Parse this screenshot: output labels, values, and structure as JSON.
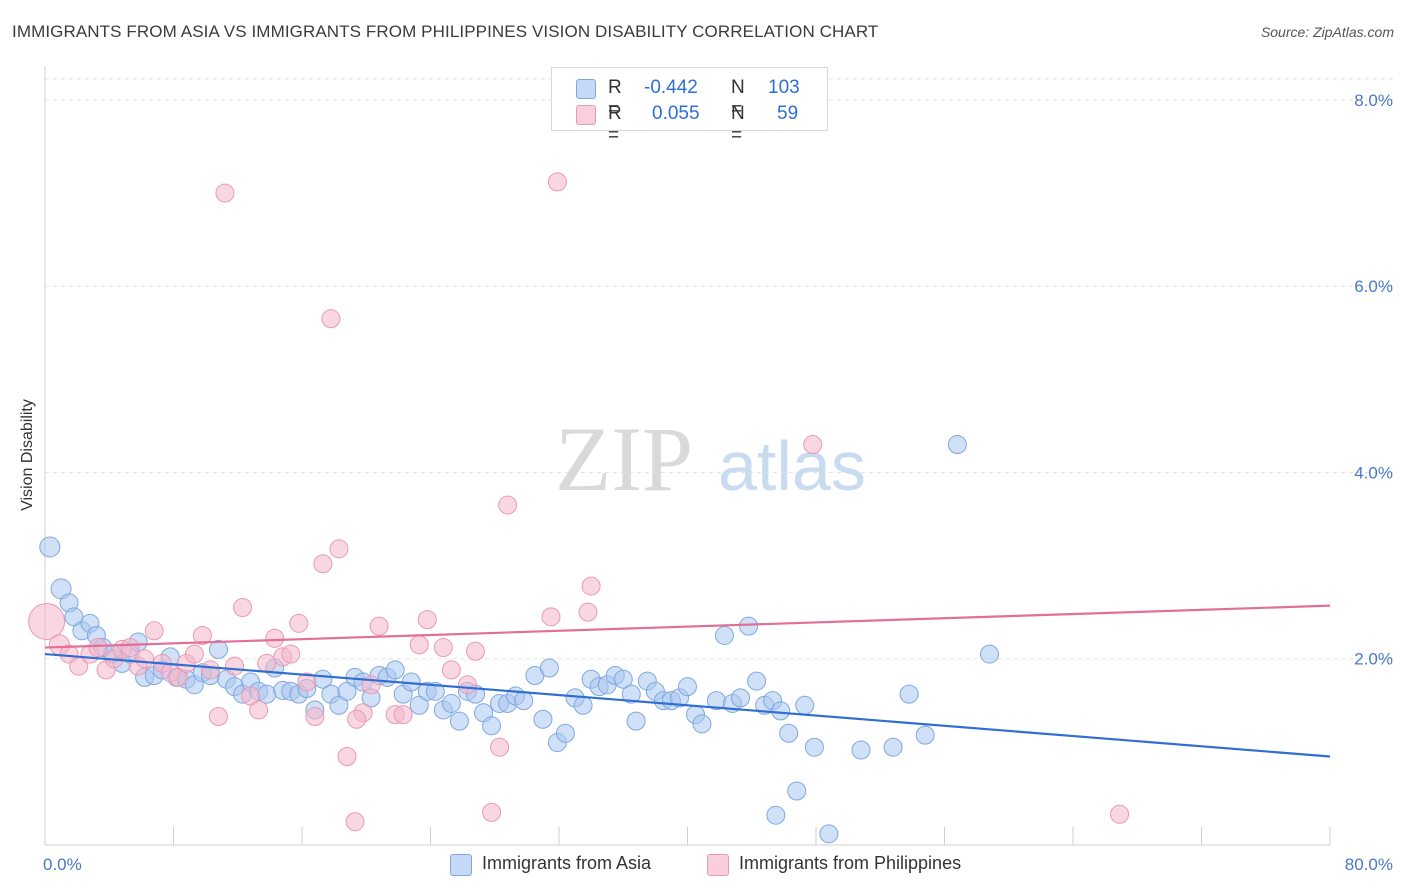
{
  "title": "IMMIGRANTS FROM ASIA VS IMMIGRANTS FROM PHILIPPINES VISION DISABILITY CORRELATION CHART",
  "source": "Source: ZipAtlas.com",
  "watermark": {
    "zip": "ZIP",
    "atlas": "atlas"
  },
  "legend_top": {
    "rows": [
      {
        "r_label": "R =",
        "r_value": "-0.442",
        "n_label": "N =",
        "n_value": "103",
        "color": "#a9c6f0"
      },
      {
        "r_label": "R =",
        "r_value": "0.055",
        "n_label": "N =",
        "n_value": "59",
        "color": "#f4b6ca"
      }
    ]
  },
  "legend_bottom": [
    {
      "label": "Immigrants from Asia",
      "color": "#a9c6f0"
    },
    {
      "label": "Immigrants from Philippines",
      "color": "#f4b6ca"
    }
  ],
  "chart_data": {
    "type": "scatter",
    "title": "IMMIGRANTS FROM ASIA VS IMMIGRANTS FROM PHILIPPINES VISION DISABILITY CORRELATION CHART",
    "xlabel": "",
    "ylabel": "Vision Disability",
    "xlim": [
      0,
      80
    ],
    "ylim": [
      0,
      8.3
    ],
    "x_tick_labels": [
      {
        "value": 0,
        "label": "0.0%"
      },
      {
        "value": 80,
        "label": "80.0%"
      }
    ],
    "y_tick_labels": [
      {
        "value": 2,
        "label": "2.0%"
      },
      {
        "value": 4,
        "label": "4.0%"
      },
      {
        "value": 6,
        "label": "6.0%"
      },
      {
        "value": 8,
        "label": "8.0%"
      }
    ],
    "grid": "horizontal dashed",
    "legend_position": "bottom",
    "series": [
      {
        "name": "Immigrants from Asia",
        "color": "#a9c6f0",
        "stroke": "#7fa8e0",
        "trend": {
          "x": [
            0,
            80
          ],
          "y": [
            2.05,
            0.95
          ],
          "color": "#2f6fd1"
        },
        "points": [
          [
            0.3,
            3.2,
            18
          ],
          [
            1,
            2.75,
            18
          ],
          [
            1.5,
            2.6,
            16
          ],
          [
            1.8,
            2.45,
            16
          ],
          [
            2.3,
            2.3,
            16
          ],
          [
            2.8,
            2.38,
            16
          ],
          [
            3.2,
            2.25,
            16
          ],
          [
            3.6,
            2.12,
            16
          ],
          [
            4.2,
            2.05,
            16
          ],
          [
            4.8,
            1.95,
            16
          ],
          [
            5.3,
            2.05,
            16
          ],
          [
            5.8,
            2.18,
            16
          ],
          [
            6.2,
            1.8,
            16
          ],
          [
            6.8,
            1.82,
            16
          ],
          [
            7.3,
            1.88,
            16
          ],
          [
            7.8,
            2.02,
            16
          ],
          [
            8.2,
            1.8,
            16
          ],
          [
            8.8,
            1.78,
            16
          ],
          [
            9.3,
            1.72,
            16
          ],
          [
            9.8,
            1.85,
            16
          ],
          [
            10.3,
            1.82,
            16
          ],
          [
            10.8,
            2.1,
            16
          ],
          [
            11.3,
            1.78,
            16
          ],
          [
            11.8,
            1.7,
            16
          ],
          [
            12.3,
            1.62,
            16
          ],
          [
            12.8,
            1.75,
            16
          ],
          [
            13.3,
            1.65,
            16
          ],
          [
            13.8,
            1.62,
            16
          ],
          [
            14.3,
            1.9,
            16
          ],
          [
            14.8,
            1.66,
            16
          ],
          [
            15.3,
            1.65,
            16
          ],
          [
            15.8,
            1.62,
            16
          ],
          [
            16.3,
            1.68,
            16
          ],
          [
            16.8,
            1.45,
            16
          ],
          [
            17.3,
            1.78,
            16
          ],
          [
            17.8,
            1.62,
            16
          ],
          [
            18.3,
            1.5,
            16
          ],
          [
            18.8,
            1.65,
            16
          ],
          [
            19.3,
            1.8,
            16
          ],
          [
            19.8,
            1.75,
            16
          ],
          [
            20.3,
            1.58,
            16
          ],
          [
            20.8,
            1.82,
            16
          ],
          [
            21.3,
            1.8,
            16
          ],
          [
            21.8,
            1.88,
            16
          ],
          [
            22.3,
            1.62,
            16
          ],
          [
            22.8,
            1.75,
            16
          ],
          [
            23.3,
            1.5,
            16
          ],
          [
            23.8,
            1.65,
            16
          ],
          [
            24.3,
            1.65,
            16
          ],
          [
            24.8,
            1.45,
            16
          ],
          [
            25.3,
            1.52,
            16
          ],
          [
            25.8,
            1.33,
            16
          ],
          [
            26.3,
            1.65,
            16
          ],
          [
            26.8,
            1.62,
            16
          ],
          [
            27.3,
            1.42,
            16
          ],
          [
            27.8,
            1.28,
            16
          ],
          [
            28.3,
            1.52,
            16
          ],
          [
            28.8,
            1.52,
            16
          ],
          [
            29.3,
            1.6,
            16
          ],
          [
            29.8,
            1.55,
            16
          ],
          [
            30.5,
            1.82,
            16
          ],
          [
            31,
            1.35,
            16
          ],
          [
            31.4,
            1.9,
            16
          ],
          [
            31.9,
            1.1,
            16
          ],
          [
            32.4,
            1.2,
            16
          ],
          [
            33,
            1.58,
            16
          ],
          [
            33.5,
            1.5,
            16
          ],
          [
            34,
            1.78,
            16
          ],
          [
            34.5,
            1.7,
            16
          ],
          [
            35,
            1.72,
            16
          ],
          [
            35.5,
            1.82,
            16
          ],
          [
            36,
            1.78,
            16
          ],
          [
            36.5,
            1.62,
            16
          ],
          [
            36.8,
            1.33,
            16
          ],
          [
            37.5,
            1.76,
            16
          ],
          [
            38,
            1.65,
            16
          ],
          [
            38.5,
            1.55,
            16
          ],
          [
            39,
            1.55,
            16
          ],
          [
            39.5,
            1.58,
            16
          ],
          [
            40,
            1.7,
            16
          ],
          [
            40.5,
            1.4,
            16
          ],
          [
            40.9,
            1.3,
            16
          ],
          [
            41.8,
            1.55,
            16
          ],
          [
            42.3,
            2.25,
            16
          ],
          [
            42.8,
            1.52,
            16
          ],
          [
            43.3,
            1.58,
            16
          ],
          [
            43.8,
            2.35,
            16
          ],
          [
            44.3,
            1.76,
            16
          ],
          [
            44.8,
            1.5,
            16
          ],
          [
            45.3,
            1.55,
            16
          ],
          [
            45.8,
            1.44,
            16
          ],
          [
            46.3,
            1.2,
            16
          ],
          [
            46.8,
            0.58,
            16
          ],
          [
            47.3,
            1.5,
            16
          ],
          [
            47.9,
            1.05,
            16
          ],
          [
            48.8,
            0.12,
            16
          ],
          [
            50.8,
            1.02,
            16
          ],
          [
            52.8,
            1.05,
            16
          ],
          [
            53.8,
            1.62,
            16
          ],
          [
            54.8,
            1.18,
            16
          ],
          [
            56.8,
            4.3,
            16
          ],
          [
            58.8,
            2.05,
            16
          ],
          [
            45.5,
            0.32,
            16
          ]
        ]
      },
      {
        "name": "Immigrants from Philippines",
        "color": "#f4b6ca",
        "stroke": "#e999b4",
        "trend": {
          "x": [
            0,
            80
          ],
          "y": [
            2.12,
            2.57
          ],
          "color": "#e26f97"
        },
        "points": [
          [
            0.1,
            2.4,
            34
          ],
          [
            0.9,
            2.15,
            18
          ],
          [
            1.5,
            2.05,
            16
          ],
          [
            2.1,
            1.92,
            16
          ],
          [
            2.8,
            2.05,
            16
          ],
          [
            3.3,
            2.12,
            16
          ],
          [
            3.8,
            1.88,
            16
          ],
          [
            4.3,
            2.0,
            16
          ],
          [
            4.8,
            2.1,
            16
          ],
          [
            5.3,
            2.12,
            16
          ],
          [
            5.8,
            1.92,
            16
          ],
          [
            6.2,
            2.0,
            16
          ],
          [
            6.8,
            2.3,
            16
          ],
          [
            7.3,
            1.95,
            16
          ],
          [
            7.8,
            1.85,
            16
          ],
          [
            8.3,
            1.8,
            16
          ],
          [
            8.8,
            1.95,
            16
          ],
          [
            9.3,
            2.05,
            16
          ],
          [
            9.8,
            2.25,
            16
          ],
          [
            10.3,
            1.88,
            16
          ],
          [
            10.8,
            1.38,
            16
          ],
          [
            11.2,
            7.0,
            16
          ],
          [
            11.8,
            1.92,
            16
          ],
          [
            12.3,
            2.55,
            16
          ],
          [
            12.8,
            1.6,
            16
          ],
          [
            13.3,
            1.45,
            16
          ],
          [
            13.8,
            1.95,
            16
          ],
          [
            14.3,
            2.22,
            16
          ],
          [
            14.8,
            2.02,
            16
          ],
          [
            15.3,
            2.05,
            16
          ],
          [
            15.8,
            2.38,
            16
          ],
          [
            16.3,
            1.75,
            16
          ],
          [
            16.8,
            1.38,
            16
          ],
          [
            17.3,
            3.02,
            16
          ],
          [
            17.8,
            5.65,
            16
          ],
          [
            18.3,
            3.18,
            16
          ],
          [
            18.8,
            0.95,
            16
          ],
          [
            19.3,
            0.25,
            16
          ],
          [
            19.8,
            1.42,
            16
          ],
          [
            20.3,
            1.72,
            16
          ],
          [
            20.8,
            2.35,
            16
          ],
          [
            21.8,
            1.4,
            16
          ],
          [
            22.3,
            1.4,
            16
          ],
          [
            23.3,
            2.15,
            16
          ],
          [
            23.8,
            2.42,
            16
          ],
          [
            24.8,
            2.12,
            16
          ],
          [
            25.3,
            1.88,
            16
          ],
          [
            26.3,
            1.72,
            16
          ],
          [
            26.8,
            2.08,
            16
          ],
          [
            27.8,
            0.35,
            16
          ],
          [
            28.3,
            1.05,
            16
          ],
          [
            28.8,
            3.65,
            16
          ],
          [
            31.5,
            2.45,
            16
          ],
          [
            31.9,
            7.12,
            16
          ],
          [
            33.8,
            2.5,
            16
          ],
          [
            34,
            2.78,
            16
          ],
          [
            47.8,
            4.3,
            16
          ],
          [
            19.4,
            1.35,
            16
          ],
          [
            66.9,
            0.33,
            16
          ]
        ]
      }
    ]
  }
}
